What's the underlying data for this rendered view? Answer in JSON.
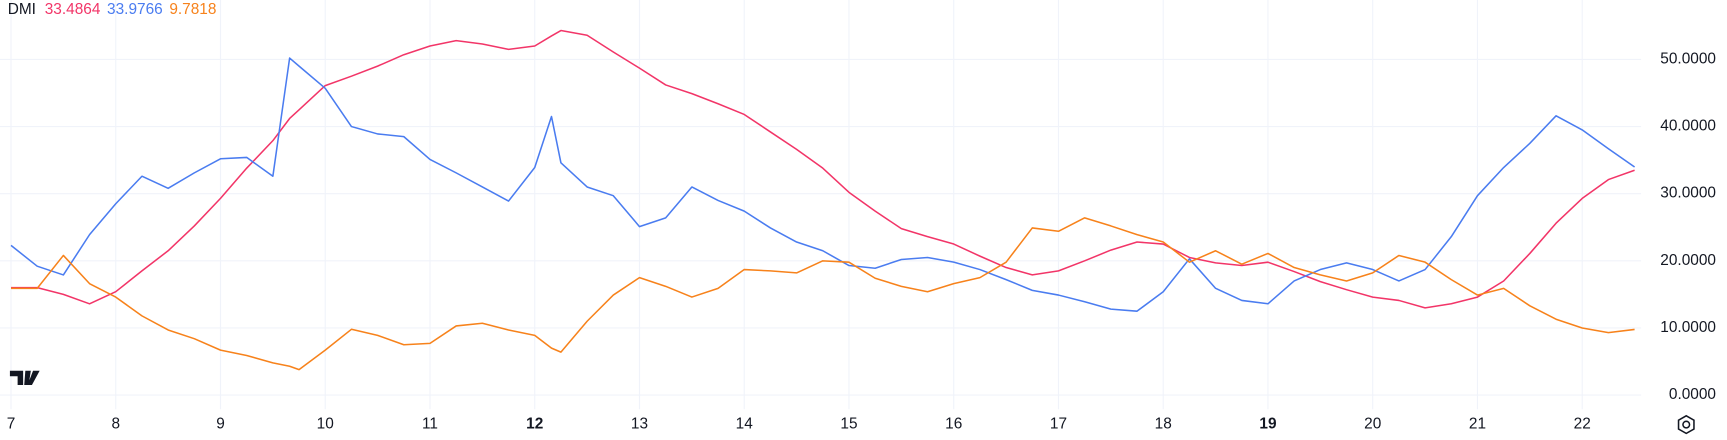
{
  "chart_data": {
    "type": "line",
    "indicator": "DMI",
    "x": [
      7,
      7.25,
      7.5,
      7.75,
      8,
      8.25,
      8.5,
      8.75,
      9,
      9.25,
      9.5,
      9.66,
      9.75,
      10,
      10.25,
      10.5,
      10.75,
      11,
      11.25,
      11.5,
      11.75,
      12,
      12.16,
      12.25,
      12.5,
      12.75,
      13,
      13.25,
      13.5,
      13.75,
      14,
      14.25,
      14.5,
      14.75,
      15,
      15.25,
      15.5,
      15.75,
      16,
      16.25,
      16.5,
      16.75,
      17,
      17.25,
      17.5,
      17.75,
      18,
      18.25,
      18.5,
      18.75,
      19,
      19.25,
      19.5,
      19.75,
      20,
      20.25,
      20.5,
      20.75,
      21,
      21.25,
      21.5,
      21.75,
      22,
      22.25,
      22.5
    ],
    "series": [
      {
        "color": "#f23568",
        "last_value": 33.4864,
        "values": [
          16,
          16,
          15,
          13.6,
          15.4,
          18.5,
          21.5,
          25.2,
          29.3,
          33.8,
          37.9,
          41.2,
          42.5,
          46.1,
          47.5,
          49,
          50.7,
          52,
          52.8,
          52.3,
          51.5,
          52,
          53.5,
          54.3,
          53.6,
          51.1,
          48.7,
          46.2,
          44.9,
          43.4,
          41.8,
          39.2,
          36.6,
          33.8,
          30.2,
          27.4,
          24.8,
          23.6,
          22.5,
          20.7,
          19,
          17.9,
          18.5,
          20,
          21.6,
          22.8,
          22.5,
          20.5,
          19.7,
          19.3,
          19.8,
          18.4,
          16.9,
          15.7,
          14.6,
          14.1,
          13,
          13.6,
          14.6,
          17,
          21.1,
          25.6,
          29.3,
          32.1,
          33.4864
        ]
      },
      {
        "color": "#4a7cf0",
        "last_value": 33.9766,
        "values": [
          22.3,
          19.2,
          17.9,
          23.9,
          28.5,
          32.6,
          30.8,
          33.1,
          35.2,
          35.4,
          32.6,
          50.2,
          49,
          45.7,
          40,
          38.9,
          38.5,
          35.1,
          33.1,
          31,
          28.9,
          33.9,
          41.5,
          34.6,
          31,
          29.7,
          25.1,
          26.4,
          31,
          29,
          27.4,
          24.9,
          22.8,
          21.5,
          19.3,
          18.9,
          20.2,
          20.5,
          19.8,
          18.7,
          17.2,
          15.6,
          14.9,
          13.9,
          12.8,
          12.5,
          15.4,
          20.3,
          15.9,
          14.1,
          13.6,
          17,
          18.7,
          19.7,
          18.7,
          17,
          18.7,
          23.6,
          29.7,
          33.9,
          37.5,
          41.6,
          39.5,
          36.7,
          33.9766
        ]
      },
      {
        "color": "#f7821b",
        "last_value": 9.7818,
        "values": [
          15.9,
          15.9,
          20.8,
          16.6,
          14.6,
          11.8,
          9.7,
          8.4,
          6.7,
          5.9,
          4.8,
          4.3,
          3.8,
          6.7,
          9.8,
          8.9,
          7.5,
          7.7,
          10.3,
          10.7,
          9.7,
          8.9,
          7,
          6.4,
          11,
          14.9,
          17.5,
          16.2,
          14.6,
          15.9,
          18.7,
          18.5,
          18.2,
          20,
          19.8,
          17.4,
          16.2,
          15.4,
          16.6,
          17.5,
          19.8,
          24.9,
          24.4,
          26.4,
          25.2,
          23.9,
          22.8,
          19.8,
          21.5,
          19.5,
          21.1,
          19,
          17.9,
          17,
          18.2,
          20.8,
          19.8,
          17.2,
          14.9,
          15.9,
          13.3,
          11.3,
          10,
          9.3,
          9.7818
        ]
      }
    ],
    "xlim": [
      6.895,
      22.562
    ],
    "ylim": [
      -2.1,
      58.85
    ],
    "xticks": [
      7,
      8,
      9,
      10,
      11,
      12,
      13,
      14,
      15,
      16,
      17,
      18,
      19,
      20,
      21,
      22
    ],
    "xticks_bold": [
      12,
      19
    ],
    "yticks": [
      {
        "value": 0,
        "label": "0.0000"
      },
      {
        "value": 10,
        "label": "10.0000"
      },
      {
        "value": 20,
        "label": "20.0000"
      },
      {
        "value": 30,
        "label": "30.0000"
      },
      {
        "value": 40,
        "label": "40.0000"
      },
      {
        "value": 50,
        "label": "50.0000"
      }
    ],
    "grid": true
  }
}
